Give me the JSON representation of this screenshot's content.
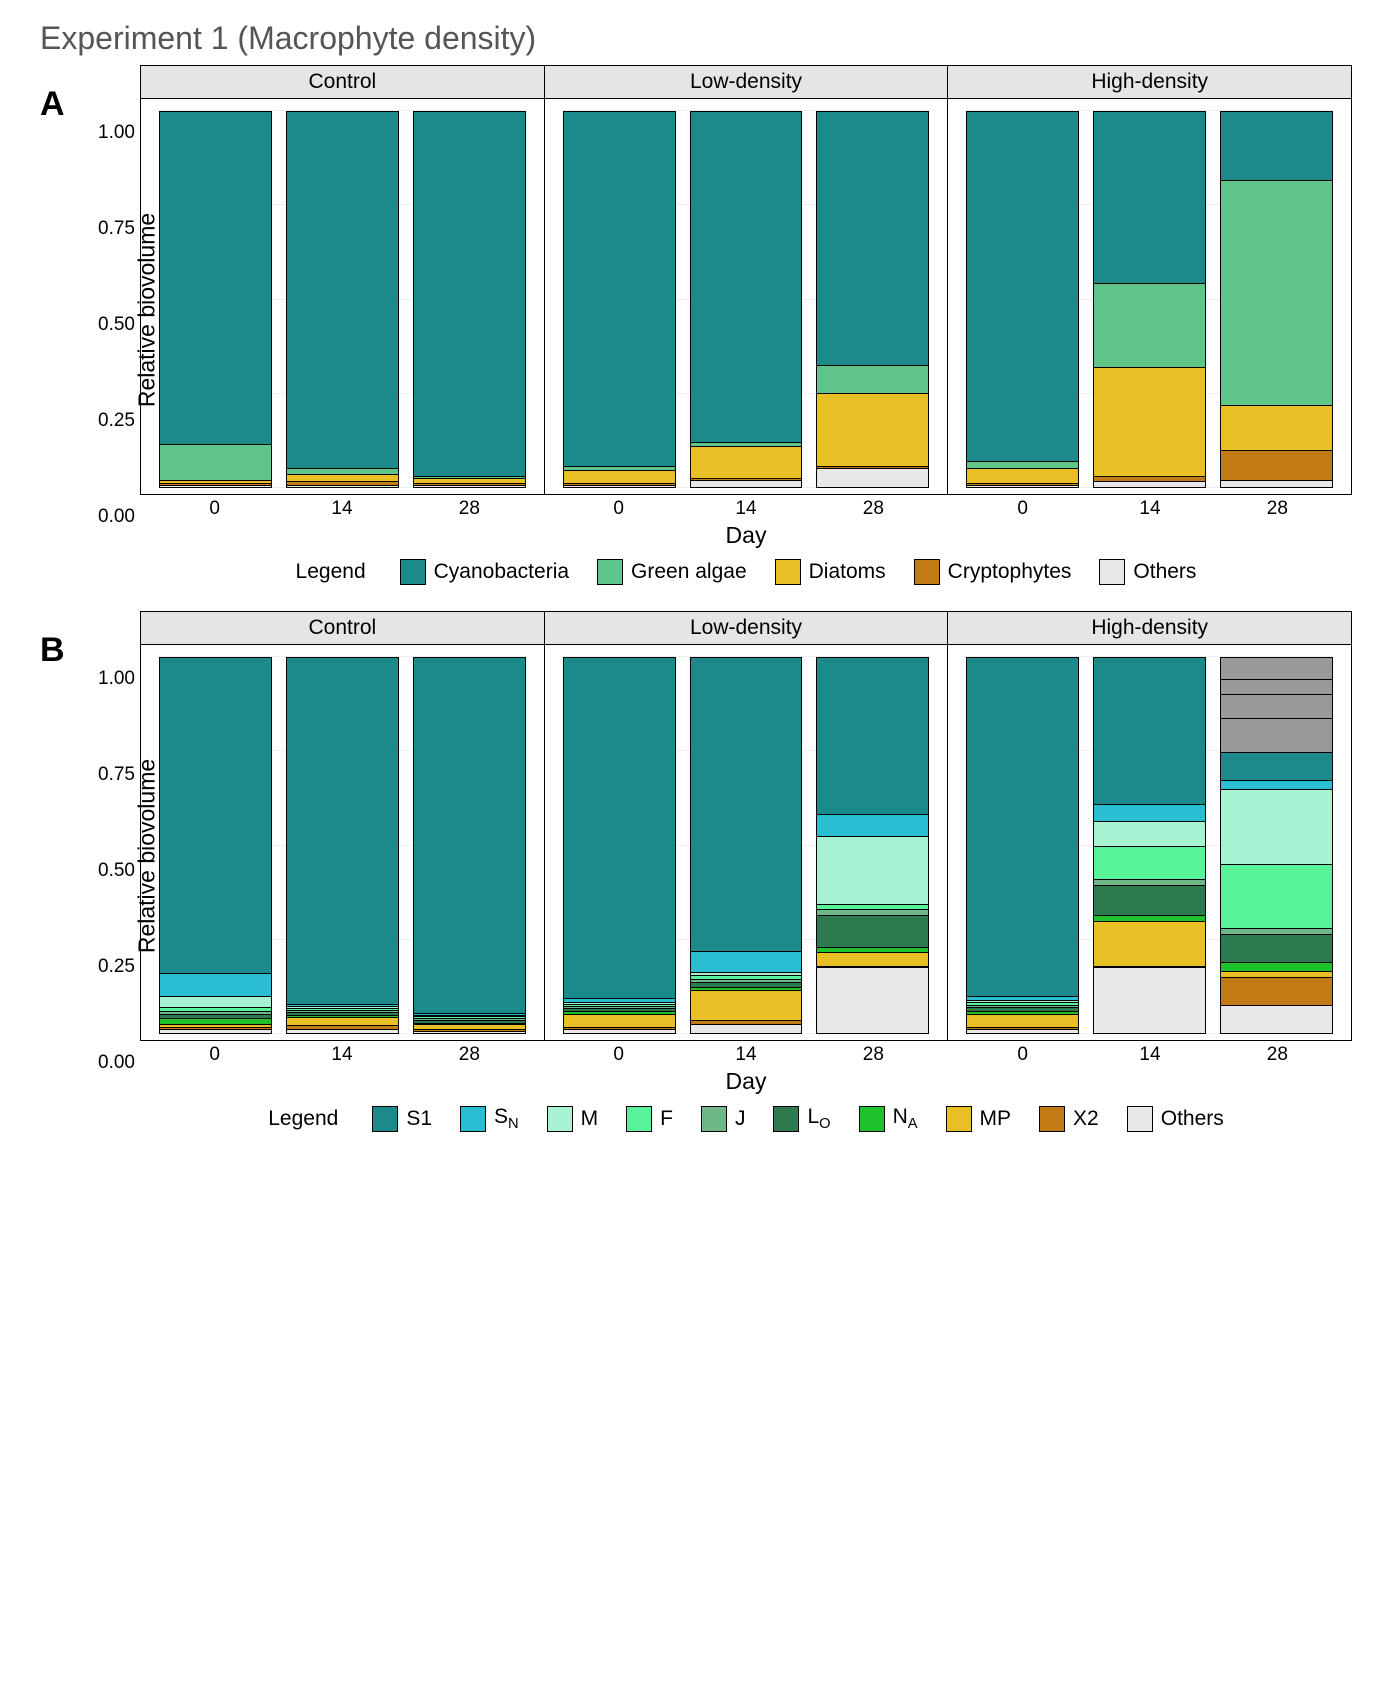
{
  "title": "Experiment 1 (Macrophyte density)",
  "yAxisLabel": "Relative biovolume",
  "xAxisLabel": "Day",
  "yTicks": [
    0.0,
    0.25,
    0.5,
    0.75,
    1.0
  ],
  "xTicks": [
    "0",
    "14",
    "28"
  ],
  "panelHeightPx": 430,
  "legendWord": "Legend",
  "rows": [
    {
      "id": "A",
      "panels": [
        "Control",
        "Low-density",
        "High-density"
      ],
      "legend": [
        {
          "key": "cyano",
          "label": "Cyanobacteria",
          "color": "#1c8a8a"
        },
        {
          "key": "green",
          "label": "Green algae",
          "color": "#5fc58a"
        },
        {
          "key": "diat",
          "label": "Diatoms",
          "color": "#e8c026"
        },
        {
          "key": "crypt",
          "label": "Cryptophytes",
          "color": "#c17a14"
        },
        {
          "key": "other",
          "label": "Others",
          "color": "#e8e8e8"
        }
      ],
      "data": {
        "Control": [
          [
            [
              "other",
              0.005
            ],
            [
              "crypt",
              0.005
            ],
            [
              "diat",
              0.01
            ],
            [
              "green",
              0.095
            ],
            [
              "cyano",
              0.885
            ]
          ],
          [
            [
              "other",
              0.005
            ],
            [
              "crypt",
              0.01
            ],
            [
              "diat",
              0.02
            ],
            [
              "green",
              0.015
            ],
            [
              "cyano",
              0.95
            ]
          ],
          [
            [
              "other",
              0.005
            ],
            [
              "crypt",
              0.005
            ],
            [
              "diat",
              0.015
            ],
            [
              "green",
              0.005
            ],
            [
              "cyano",
              0.97
            ]
          ]
        ],
        "Low-density": [
          [
            [
              "other",
              0.005
            ],
            [
              "crypt",
              0.005
            ],
            [
              "diat",
              0.035
            ],
            [
              "green",
              0.01
            ],
            [
              "cyano",
              0.945
            ]
          ],
          [
            [
              "other",
              0.02
            ],
            [
              "crypt",
              0.005
            ],
            [
              "diat",
              0.085
            ],
            [
              "green",
              0.01
            ],
            [
              "cyano",
              0.88
            ]
          ],
          [
            [
              "other",
              0.05
            ],
            [
              "crypt",
              0.005
            ],
            [
              "diat",
              0.195
            ],
            [
              "green",
              0.075
            ],
            [
              "cyano",
              0.675
            ]
          ]
        ],
        "High-density": [
          [
            [
              "other",
              0.005
            ],
            [
              "crypt",
              0.005
            ],
            [
              "diat",
              0.04
            ],
            [
              "green",
              0.02
            ],
            [
              "cyano",
              0.93
            ]
          ],
          [
            [
              "other",
              0.015
            ],
            [
              "crypt",
              0.015
            ],
            [
              "diat",
              0.29
            ],
            [
              "green",
              0.225
            ],
            [
              "cyano",
              0.455
            ]
          ],
          [
            [
              "other",
              0.02
            ],
            [
              "crypt",
              0.08
            ],
            [
              "diat",
              0.118
            ],
            [
              "green",
              0.6
            ],
            [
              "cyano",
              0.182
            ]
          ]
        ]
      }
    },
    {
      "id": "B",
      "panels": [
        "Control",
        "Low-density",
        "High-density"
      ],
      "legend": [
        {
          "key": "S1",
          "label": "S1",
          "color": "#1c8a8a"
        },
        {
          "key": "SN",
          "label": "S|N",
          "color": "#2bbdd1"
        },
        {
          "key": "M",
          "label": "M",
          "color": "#a6f2d2"
        },
        {
          "key": "F",
          "label": "F",
          "color": "#58f29a"
        },
        {
          "key": "J",
          "label": "J",
          "color": "#6fb786"
        },
        {
          "key": "LO",
          "label": "L|O",
          "color": "#2d7a4f"
        },
        {
          "key": "NA",
          "label": "N|A",
          "color": "#1fc22a"
        },
        {
          "key": "MP",
          "label": "MP",
          "color": "#e8c026"
        },
        {
          "key": "X2",
          "label": "X2",
          "color": "#c17a14"
        },
        {
          "key": "Others",
          "label": "Others",
          "color": "#e8e8e8"
        }
      ],
      "data": {
        "Control": [
          [
            [
              "Others",
              0.01
            ],
            [
              "X2",
              0.005
            ],
            [
              "MP",
              0.01
            ],
            [
              "NA",
              0.015
            ],
            [
              "LO",
              0.01
            ],
            [
              "J",
              0.01
            ],
            [
              "F",
              0.01
            ],
            [
              "M",
              0.03
            ],
            [
              "SN",
              0.06
            ],
            [
              "S1",
              0.84
            ]
          ],
          [
            [
              "Others",
              0.01
            ],
            [
              "X2",
              0.012
            ],
            [
              "MP",
              0.02
            ],
            [
              "NA",
              0.005
            ],
            [
              "LO",
              0.01
            ],
            [
              "J",
              0.005
            ],
            [
              "F",
              0.005
            ],
            [
              "M",
              0.005
            ],
            [
              "SN",
              0.005
            ],
            [
              "S1",
              0.923
            ]
          ],
          [
            [
              "Others",
              0.006
            ],
            [
              "X2",
              0.005
            ],
            [
              "MP",
              0.012
            ],
            [
              "NA",
              0.005
            ],
            [
              "LO",
              0.008
            ],
            [
              "J",
              0.005
            ],
            [
              "F",
              0.004
            ],
            [
              "M",
              0.004
            ],
            [
              "SN",
              0.004
            ],
            [
              "S1",
              0.947
            ]
          ]
        ],
        "Low-density": [
          [
            [
              "Others",
              0.01
            ],
            [
              "X2",
              0.005
            ],
            [
              "MP",
              0.035
            ],
            [
              "NA",
              0.008
            ],
            [
              "LO",
              0.01
            ],
            [
              "J",
              0.005
            ],
            [
              "F",
              0.005
            ],
            [
              "M",
              0.005
            ],
            [
              "SN",
              0.01
            ],
            [
              "S1",
              0.907
            ]
          ],
          [
            [
              "Others",
              0.025
            ],
            [
              "X2",
              0.01
            ],
            [
              "MP",
              0.08
            ],
            [
              "NA",
              0.008
            ],
            [
              "LO",
              0.012
            ],
            [
              "J",
              0.01
            ],
            [
              "F",
              0.01
            ],
            [
              "M",
              0.008
            ],
            [
              "SN",
              0.055
            ],
            [
              "S1",
              0.782
            ]
          ],
          [
            [
              "Others",
              0.175
            ],
            [
              "X2",
              0.005
            ],
            [
              "MP",
              0.035
            ],
            [
              "NA",
              0.015
            ],
            [
              "LO",
              0.085
            ],
            [
              "J",
              0.015
            ],
            [
              "F",
              0.015
            ],
            [
              "M",
              0.18
            ],
            [
              "SN",
              0.06
            ],
            [
              "S1",
              0.415
            ]
          ]
        ],
        "High-density": [
          [
            [
              "Others",
              0.01
            ],
            [
              "X2",
              0.005
            ],
            [
              "MP",
              0.035
            ],
            [
              "NA",
              0.008
            ],
            [
              "LO",
              0.012
            ],
            [
              "J",
              0.006
            ],
            [
              "F",
              0.006
            ],
            [
              "M",
              0.006
            ],
            [
              "SN",
              0.01
            ],
            [
              "S1",
              0.902
            ]
          ],
          [
            [
              "Others",
              0.175
            ],
            [
              "X2",
              0.005
            ],
            [
              "MP",
              0.12
            ],
            [
              "NA",
              0.015
            ],
            [
              "LO",
              0.08
            ],
            [
              "J",
              0.015
            ],
            [
              "F",
              0.09
            ],
            [
              "M",
              0.065
            ],
            [
              "SN",
              0.045
            ],
            [
              "S1",
              0.39
            ]
          ],
          [
            [
              "Others",
              0.075
            ],
            [
              "X2",
              0.075
            ],
            [
              "MP",
              0.015
            ],
            [
              "NA",
              0.025
            ],
            [
              "LO",
              0.075
            ],
            [
              "J",
              0.015
            ],
            [
              "F",
              0.17
            ],
            [
              "M",
              0.2
            ],
            [
              "SN",
              0.025
            ],
            [
              "S1",
              0.075
            ],
            [
              "MP2",
              0.09
            ],
            [
              "M2",
              0.065
            ],
            [
              "SN2",
              0.04
            ],
            [
              "S12",
              0.055
            ]
          ]
        ]
      },
      "dataFix": {
        "High-density-28": [
          [
            "Others",
            0.075
          ],
          [
            "X2",
            0.075
          ],
          [
            "MP",
            0.015
          ],
          [
            "NA",
            0.025
          ],
          [
            "LO",
            0.075
          ],
          [
            "J",
            0.015
          ],
          [
            "F",
            0.17
          ],
          [
            "M",
            0.2
          ],
          [
            "SN",
            0.025
          ],
          [
            "MP",
            0.09
          ],
          [
            "M",
            0.065
          ],
          [
            "SN",
            0.04
          ],
          [
            "S1",
            0.13
          ]
        ]
      }
    }
  ],
  "colors": {
    "cyano": "#1c8a8a",
    "green": "#5fc58a",
    "diat": "#e8c026",
    "crypt": "#c17a14",
    "other": "#e8e8e8",
    "S1": "#1c8a8a",
    "SN": "#2bbdd1",
    "M": "#a6f2d2",
    "F": "#58f29a",
    "J": "#6fb786",
    "LO": "#2d7a4f",
    "NA": "#1fc22a",
    "MP": "#e8c026",
    "X2": "#c17a14",
    "Others": "#e8e8e8"
  },
  "styling": {
    "titleFontSize": 32,
    "titleColor": "#555555",
    "rowLabelFontSize": 34,
    "rowLabelWeight": 700,
    "panelHeaderBg": "#e5e5e5",
    "panelHeaderFontSize": 21,
    "axisTickFontSize": 19,
    "axisLabelFontSize": 23,
    "legendFontSize": 21,
    "swatchSize": 26,
    "borderColor": "#000000",
    "gridColor": "#eeeeee",
    "background": "#ffffff"
  }
}
